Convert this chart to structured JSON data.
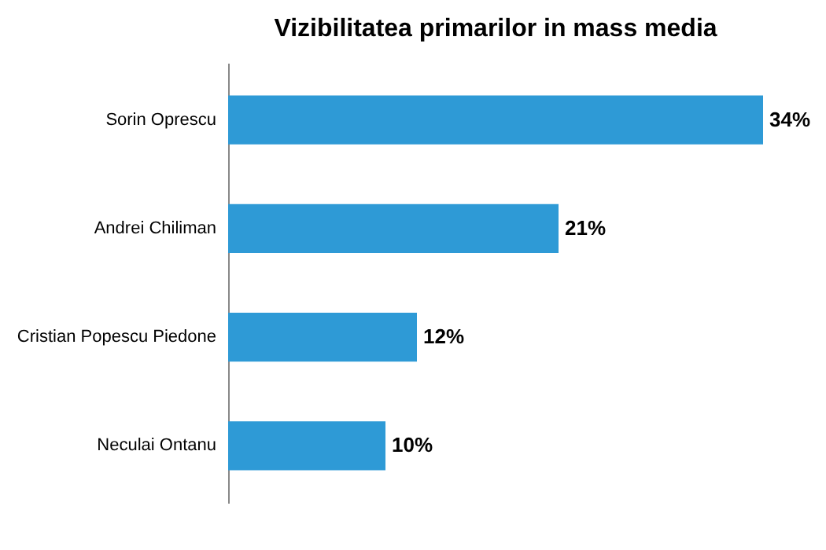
{
  "chart_data": {
    "type": "bar",
    "orientation": "horizontal",
    "title": "Vizibilitatea primarilor in mass media",
    "categories": [
      "Sorin Oprescu",
      "Andrei Chiliman",
      "Cristian Popescu Piedone",
      "Neculai Ontanu"
    ],
    "values": [
      34,
      21,
      12,
      10
    ],
    "value_labels": [
      "34%",
      "21%",
      "12%",
      "10%"
    ],
    "color": "#2e9ad6"
  }
}
